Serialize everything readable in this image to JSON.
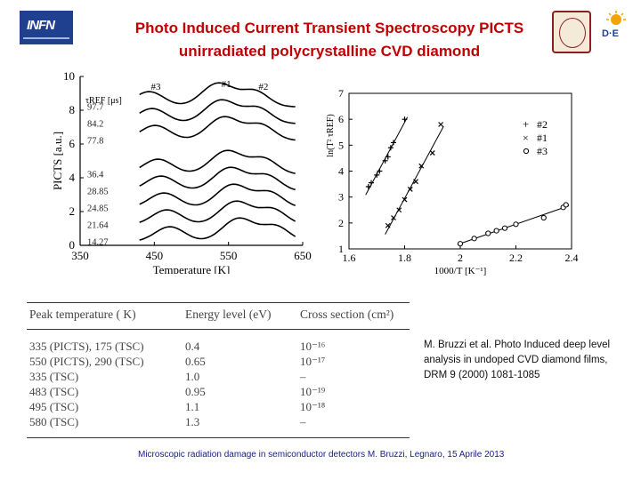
{
  "slide": {
    "title_line1": "Photo Induced Current Transient Spectroscopy PICTS",
    "title_line2": "unirradiated  polycrystalline CVD diamond",
    "logo_text": "INFN",
    "logo_de_text": "D·E",
    "reference": "M. Bruzzi et al.  Photo Induced deep level analysis in undoped CVD diamond films, DRM 9 (2000) 1081-1085",
    "footer": "Microscopic radiation damage in semiconductor detectors  M. Bruzzi, Legnaro, 15 Aprile 2013"
  },
  "chart_data": [
    {
      "type": "line",
      "xlabel": "Temperature [K]",
      "ylabel": "PICTS [a.u.]",
      "xlim": [
        350,
        650
      ],
      "ylim": [
        0,
        10
      ],
      "x_ticks": [
        "350",
        "450",
        "550",
        "650"
      ],
      "y_ticks": [
        "0",
        "2",
        "4",
        "6",
        "8",
        "10"
      ],
      "legend_title": "τREF [μs]",
      "peak_labels": [
        "#3",
        "#1",
        "#2"
      ],
      "series": [
        {
          "name": "97.7",
          "offset": 8.0
        },
        {
          "name": "84.2",
          "offset": 7.0
        },
        {
          "name": "77.8",
          "offset": 6.0
        },
        {
          "name": "36.4",
          "offset": 4.0
        },
        {
          "name": "28.85",
          "offset": 3.0
        },
        {
          "name": "24.85",
          "offset": 2.0
        },
        {
          "name": "21.64",
          "offset": 1.0
        },
        {
          "name": "14.27",
          "offset": 0.0
        }
      ]
    },
    {
      "type": "scatter",
      "xlabel": "1000/T [K⁻¹]",
      "ylabel": "ln(T² τREF)",
      "xlim": [
        1.6,
        2.4
      ],
      "ylim": [
        1,
        7
      ],
      "x_ticks": [
        "1.6",
        "1.8",
        "2",
        "2.2",
        "2.4"
      ],
      "y_ticks": [
        "1",
        "2",
        "3",
        "4",
        "5",
        "6",
        "7"
      ],
      "series": [
        {
          "name": "#2",
          "marker": "+",
          "x": [
            1.67,
            1.68,
            1.7,
            1.71,
            1.73,
            1.74,
            1.75,
            1.76,
            1.8
          ],
          "y": [
            3.4,
            3.55,
            3.85,
            4.0,
            4.4,
            4.55,
            4.9,
            5.1,
            6.0
          ]
        },
        {
          "name": "#1",
          "marker": "x",
          "x": [
            1.74,
            1.76,
            1.78,
            1.8,
            1.82,
            1.84,
            1.86,
            1.9,
            1.93
          ],
          "y": [
            1.9,
            2.2,
            2.5,
            2.9,
            3.3,
            3.6,
            4.2,
            4.7,
            5.8
          ]
        },
        {
          "name": "#3",
          "marker": "o",
          "x": [
            2.0,
            2.05,
            2.1,
            2.13,
            2.16,
            2.2,
            2.3,
            2.37,
            2.38
          ],
          "y": [
            1.2,
            1.4,
            1.6,
            1.7,
            1.8,
            1.95,
            2.2,
            2.6,
            2.7
          ]
        }
      ]
    }
  ],
  "table": {
    "headers": [
      "Peak temperature ( K)",
      "Energy level (eV)",
      "Cross section (cm²)"
    ],
    "rows": [
      [
        "335 (PICTS), 175 (TSC)",
        "0.4",
        "10⁻¹⁶"
      ],
      [
        "550 (PICTS), 290 (TSC)",
        "0.65",
        "10⁻¹⁷"
      ],
      [
        "335 (TSC)",
        "1.0",
        "–"
      ],
      [
        "483 (TSC)",
        "0.95",
        "10⁻¹⁹"
      ],
      [
        "495 (TSC)",
        "1.1",
        "10⁻¹⁸"
      ],
      [
        "580 (TSC)",
        "1.3",
        "–"
      ]
    ]
  },
  "colors": {
    "title": "#c00000",
    "footer": "#1a1a8c",
    "infn_logo": "#1f3f8f",
    "seal": "#8b2020"
  },
  "icons": {
    "left_logo": "infn-logo-icon",
    "seal": "university-seal-icon",
    "right_logo": "de-logo-icon"
  }
}
